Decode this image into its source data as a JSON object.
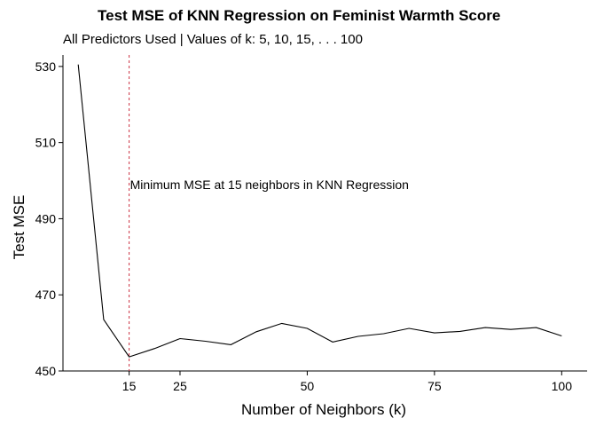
{
  "chart_data": {
    "type": "line",
    "title": "Test MSE of KNN Regression on Feminist Warmth Score",
    "subtitle": "All Predictors Used | Values of k: 5, 10, 15, . . . 100",
    "xlabel": "Number of Neighbors (k)",
    "ylabel": "Test MSE",
    "x": [
      5,
      10,
      15,
      20,
      25,
      30,
      35,
      40,
      45,
      50,
      55,
      60,
      65,
      70,
      75,
      80,
      85,
      90,
      95,
      100
    ],
    "y": [
      530.5,
      463.5,
      453.7,
      455.9,
      458.5,
      457.8,
      456.9,
      460.3,
      462.5,
      461.2,
      457.6,
      459.1,
      459.8,
      461.2,
      460.0,
      460.4,
      461.4,
      460.9,
      461.4,
      459.2
    ],
    "xticks": [
      15,
      25,
      50,
      75,
      100
    ],
    "yticks": [
      450,
      470,
      490,
      510,
      530
    ],
    "xlim": [
      2,
      105
    ],
    "ylim": [
      450,
      533
    ],
    "vline": {
      "x": 15,
      "color": "#cc3344",
      "style": "dashed"
    },
    "annotation": {
      "text": "Minimum MSE at 15 neighbors in KNN Regression",
      "x": 15,
      "y": 499
    },
    "line_color": "#000000",
    "grid": false
  }
}
